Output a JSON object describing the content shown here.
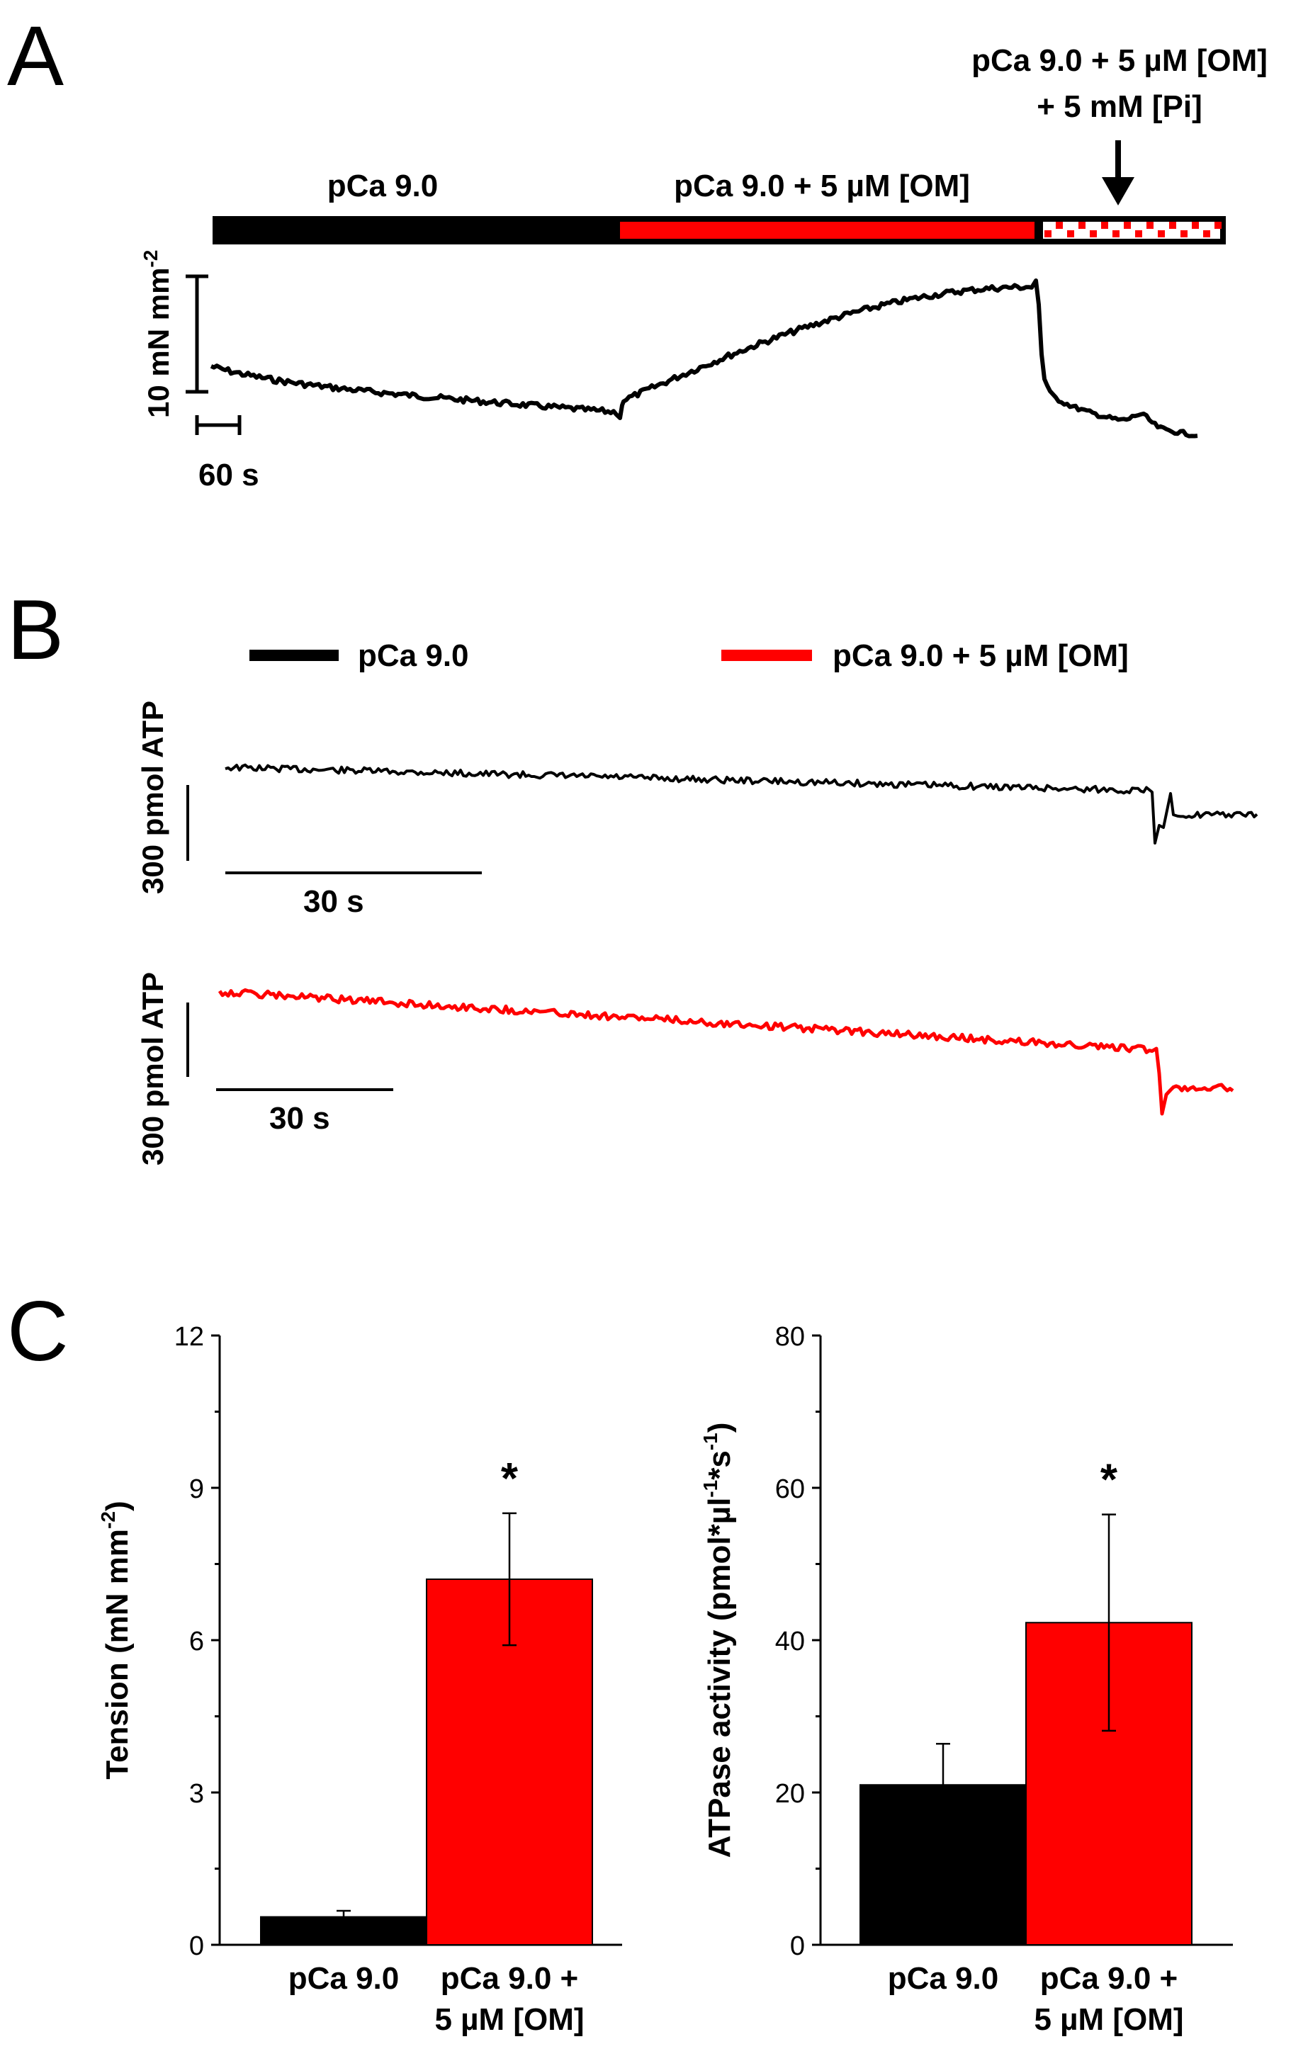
{
  "panels": {
    "a": {
      "letter": "A",
      "segments": [
        {
          "label": "pCa 9.0"
        },
        {
          "label": "pCa 9.0 + 5 µM [OM]"
        },
        {
          "label_line1": "pCa 9.0 + 5 µM [OM]",
          "label_line2": "+ 5 mM [Pi]"
        }
      ],
      "force_scale": "10 mN mm",
      "force_scale_exp": "-2",
      "time_scale": "60 s",
      "colors": {
        "control": "#000000",
        "om": "#ff0000",
        "pi_pattern": "#ff0000"
      }
    },
    "b": {
      "letter": "B",
      "legend": [
        {
          "label": "pCa 9.0",
          "color": "#000000"
        },
        {
          "label": "pCa 9.0 + 5 µM [OM]",
          "color": "#ff0000"
        }
      ],
      "traces": [
        {
          "ylabel": "300 pmol ATP",
          "time_scale": "30 s",
          "color": "#000000"
        },
        {
          "ylabel": "300 pmol ATP",
          "time_scale": "30 s",
          "color": "#ff0000"
        }
      ]
    },
    "c": {
      "letter": "C"
    }
  },
  "chart_data": [
    {
      "type": "bar",
      "title": "",
      "categories": [
        "pCa 9.0",
        "pCa 9.0 + 5 µM [OM]"
      ],
      "category_lines": [
        [
          "pCa 9.0"
        ],
        [
          "pCa 9.0 +",
          "5 µM [OM]"
        ]
      ],
      "values": [
        0.55,
        7.2
      ],
      "errors": [
        0.12,
        1.3
      ],
      "colors": [
        "#000000",
        "#ff0000"
      ],
      "significance": [
        "",
        "*"
      ],
      "ylabel": "Tension (mN mm",
      "ylabel_exp": "-2",
      "ylabel_tail": ")",
      "ylim": [
        0,
        12
      ],
      "yticks": [
        0,
        3,
        6,
        9,
        12
      ],
      "xlabel": ""
    },
    {
      "type": "bar",
      "title": "",
      "categories": [
        "pCa 9.0",
        "pCa 9.0 + 5 µM [OM]"
      ],
      "category_lines": [
        [
          "pCa 9.0"
        ],
        [
          "pCa 9.0 +",
          "5 µM [OM]"
        ]
      ],
      "values": [
        21,
        42.3
      ],
      "errors": [
        5.4,
        14.2
      ],
      "colors": [
        "#000000",
        "#ff0000"
      ],
      "significance": [
        "",
        "*"
      ],
      "ylabel": "ATPase activity (pmol*µl",
      "ylabel_exp": "-1",
      "ylabel_mid": "*s",
      "ylabel_exp2": "-1",
      "ylabel_tail": ")",
      "ylim": [
        0,
        80
      ],
      "yticks": [
        0,
        20,
        40,
        60,
        80
      ],
      "xlabel": ""
    }
  ]
}
